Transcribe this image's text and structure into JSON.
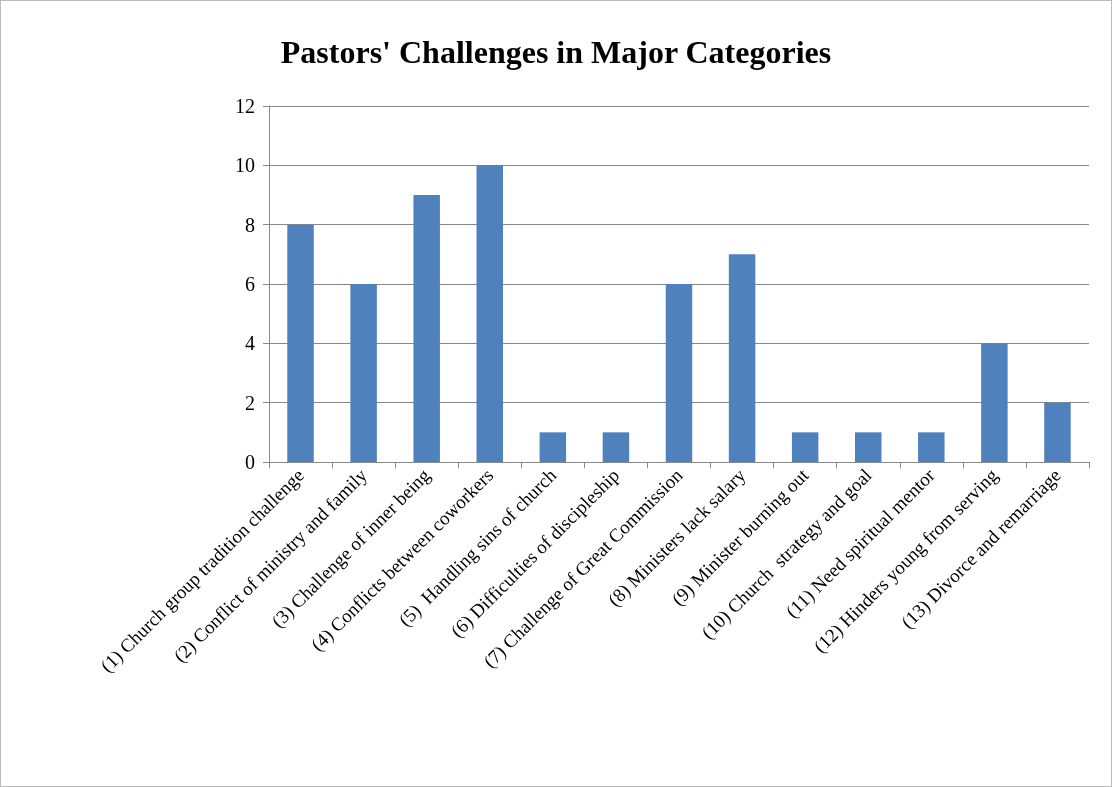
{
  "chart_data": {
    "type": "bar",
    "title": "Pastors' Challenges in Major Categories",
    "categories": [
      "(1) Church group tradition challenge",
      "(2) Conflict of ministry and family",
      "(3) Challenge of inner being",
      "(4) Conflicts between coworkers",
      "(5)  Handling sins of church",
      "(6) Difficulties of discipleship",
      "(7) Challenge of Great Commission",
      "(8) Ministers lack salary",
      "(9) Minister burning out",
      "(10) Church  strategy and goal",
      "(11) Need spiritual mentor",
      "(12) Hinders young from serving",
      "(13) Divorce and remarriage"
    ],
    "values": [
      8,
      6,
      9,
      10,
      1,
      1,
      6,
      7,
      1,
      1,
      1,
      4,
      2
    ],
    "color": "#4f81bd",
    "ylim": [
      0,
      12
    ],
    "yticks": [
      0,
      2,
      4,
      6,
      8,
      10,
      12
    ],
    "grid": "y"
  }
}
